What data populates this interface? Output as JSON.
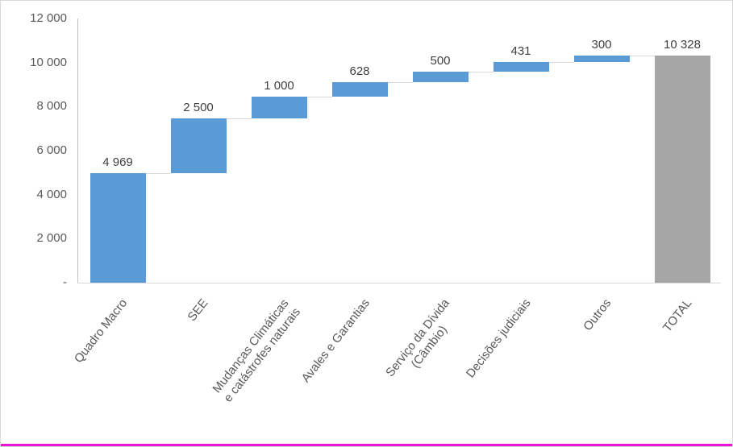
{
  "page": {
    "background": "#ffffff"
  },
  "colors": {
    "increment_bar": "#5B9BD5",
    "total_bar": "#A6A6A6",
    "connector_line": "#D9D9D9",
    "y_axis_line": "#BFBFBF",
    "x_axis_line": "#D9D9D9",
    "data_label_text": "#404040",
    "axis_text": "#595959",
    "bottom_accent": "#EC13D4",
    "frame_border": "#D9D9D9"
  },
  "chart_data": {
    "type": "bar",
    "subtype": "waterfall",
    "title": "",
    "xlabel": "",
    "ylabel": "",
    "categories": [
      "Quadro Macro",
      "SEE",
      "Mudanças Climáticas\ne catástrofes naturais",
      "Avales e Garantias",
      "Serviço da Dívida\n(Câmbio)",
      "Decisões judiciais",
      "Outros",
      "TOTAL"
    ],
    "values": [
      4969,
      2500,
      1000,
      628,
      500,
      431,
      300,
      10328
    ],
    "data_labels": [
      "4 969",
      "2 500",
      "1 000",
      "628",
      "500",
      "431",
      "300",
      "10 328"
    ],
    "cumulative_start": [
      0,
      4969,
      7469,
      8469,
      9097,
      9597,
      10028,
      0
    ],
    "cumulative_end": [
      4969,
      7469,
      8469,
      9097,
      9597,
      10028,
      10328,
      10328
    ],
    "bar_colors": [
      "#5B9BD5",
      "#5B9BD5",
      "#5B9BD5",
      "#5B9BD5",
      "#5B9BD5",
      "#5B9BD5",
      "#5B9BD5",
      "#A6A6A6"
    ],
    "ylim": [
      0,
      12000
    ],
    "ytick_values": [
      12000,
      10000,
      8000,
      6000,
      4000,
      2000,
      0
    ],
    "ytick_labels": [
      "12 000",
      "10 000",
      "8 000",
      "6 000",
      "4 000",
      "2 000",
      "-"
    ],
    "grid": false,
    "legend": false
  }
}
